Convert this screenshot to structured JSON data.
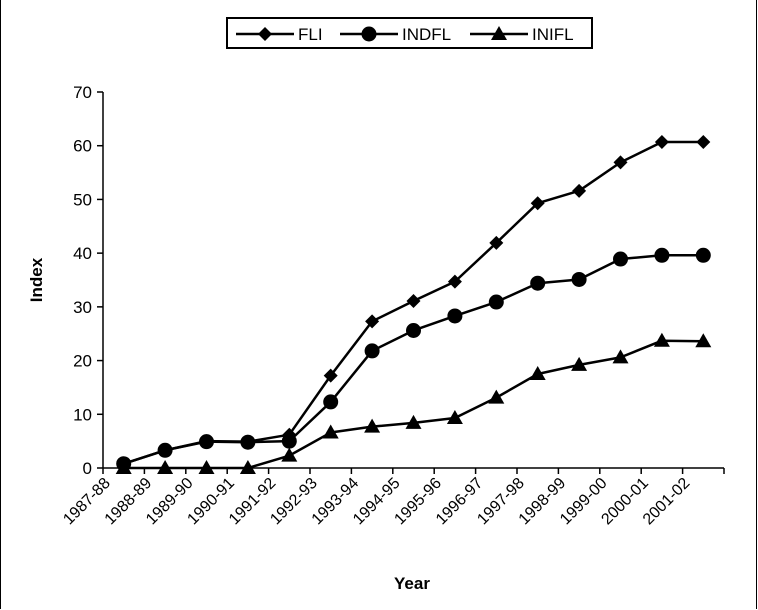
{
  "chart_data": {
    "type": "line",
    "title": "",
    "xlabel": "Year",
    "ylabel": "Index",
    "ylim": [
      0,
      70
    ],
    "yticks": [
      "0",
      "10",
      "20",
      "30",
      "40",
      "50",
      "60",
      "70"
    ],
    "categories": [
      "1987-88",
      "1988-89",
      "1989-90",
      "1990-91",
      "1991-92",
      "1992-93",
      "1993-94",
      "1994-95",
      "1995-96",
      "1996-97",
      "1997-98",
      "1998-99",
      "1999-00",
      "2000-01",
      "2001-02"
    ],
    "grid": false,
    "legend_position": "top-center",
    "series": [
      {
        "name": "FLI",
        "marker": "diamond",
        "color": "#000000",
        "values": [
          0.8,
          3.3,
          5.0,
          4.9,
          6.2,
          17.2,
          27.3,
          31.1,
          34.7,
          41.9,
          49.3,
          51.6,
          56.9,
          60.7,
          60.7
        ]
      },
      {
        "name": "INDFL",
        "marker": "circle",
        "color": "#000000",
        "values": [
          0.8,
          3.3,
          4.9,
          4.8,
          5.0,
          12.3,
          21.8,
          25.6,
          28.3,
          30.9,
          34.4,
          35.1,
          38.9,
          39.6,
          39.6
        ]
      },
      {
        "name": "INIFL",
        "marker": "triangle",
        "color": "#000000",
        "values": [
          0.0,
          0.0,
          0.0,
          0.0,
          2.3,
          6.6,
          7.7,
          8.4,
          9.3,
          13.1,
          17.5,
          19.2,
          20.6,
          23.7,
          23.6
        ]
      }
    ]
  }
}
